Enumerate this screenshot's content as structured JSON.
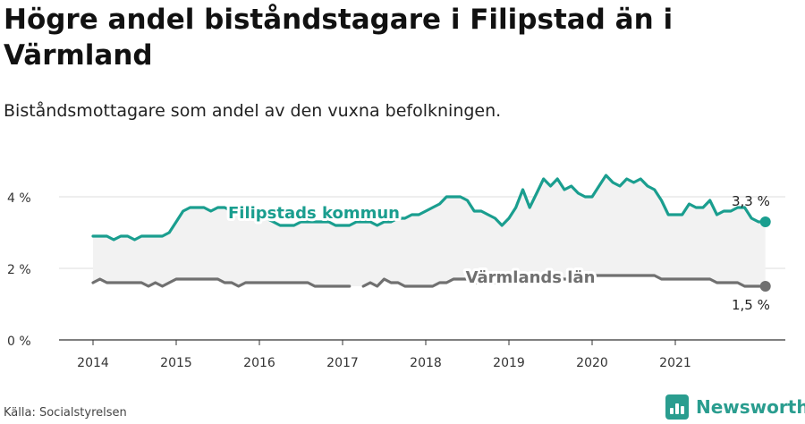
{
  "title": "Högre andel biståndstagare i Filipstad än i Värmland",
  "subtitle": "Biståndsmottagare som andel av den vuxna befolkningen.",
  "source": "Källa: Socialstyrelsen",
  "brand": "Newsworthy",
  "colors": {
    "filipstad": "#1a9e8f",
    "varmland": "#707070",
    "band": "#f2f2f2",
    "grid": "#dddddd",
    "brand": "#2a9d8f"
  },
  "chart_data": {
    "type": "line",
    "ylim": [
      0,
      5
    ],
    "y_ticks": [
      {
        "value": 0,
        "label": "0 %"
      },
      {
        "value": 2,
        "label": "2 %"
      },
      {
        "value": 4,
        "label": "4 %"
      }
    ],
    "x_ticks": [
      "2014",
      "2015",
      "2016",
      "2017",
      "2018",
      "2019",
      "2020",
      "2021"
    ],
    "x_start": 2014.0,
    "x_step": 0.08333,
    "grid": true,
    "series": [
      {
        "name": "Filipstads kommun",
        "end_label": "3,3 %",
        "values": [
          2.9,
          2.9,
          2.9,
          2.8,
          2.9,
          2.9,
          2.8,
          2.9,
          2.9,
          2.9,
          2.9,
          3.0,
          3.3,
          3.6,
          3.7,
          3.7,
          3.7,
          3.6,
          3.7,
          3.7,
          3.6,
          3.5,
          3.4,
          3.4,
          3.4,
          3.4,
          3.3,
          3.2,
          3.2,
          3.2,
          3.3,
          3.3,
          3.3,
          3.3,
          3.3,
          3.2,
          3.2,
          3.2,
          3.3,
          3.3,
          3.3,
          3.2,
          3.3,
          3.3,
          3.4,
          3.4,
          3.5,
          3.5,
          3.6,
          3.7,
          3.8,
          4.0,
          4.0,
          4.0,
          3.9,
          3.6,
          3.6,
          3.5,
          3.4,
          3.2,
          3.4,
          3.7,
          4.2,
          3.7,
          4.1,
          4.5,
          4.3,
          4.5,
          4.2,
          4.3,
          4.1,
          4.0,
          4.0,
          4.3,
          4.6,
          4.4,
          4.3,
          4.5,
          4.4,
          4.5,
          4.3,
          4.2,
          3.9,
          3.5,
          3.5,
          3.5,
          3.8,
          3.7,
          3.7,
          3.9,
          3.5,
          3.6,
          3.6,
          3.7,
          3.7,
          3.4,
          3.3,
          3.3
        ]
      },
      {
        "name": "Värmlands län",
        "end_label": "1,5 %",
        "values": [
          1.6,
          1.7,
          1.6,
          1.6,
          1.6,
          1.6,
          1.6,
          1.6,
          1.5,
          1.6,
          1.5,
          1.6,
          1.7,
          1.7,
          1.7,
          1.7,
          1.7,
          1.7,
          1.7,
          1.6,
          1.6,
          1.5,
          1.6,
          1.6,
          1.6,
          1.6,
          1.6,
          1.6,
          1.6,
          1.6,
          1.6,
          1.6,
          1.5,
          1.5,
          1.5,
          1.5,
          1.5,
          1.5,
          null,
          1.5,
          1.6,
          1.5,
          1.7,
          1.6,
          1.6,
          1.5,
          1.5,
          1.5,
          1.5,
          1.5,
          1.6,
          1.6,
          1.7,
          1.7,
          1.7,
          1.6,
          1.6,
          1.6,
          1.6,
          1.6,
          1.7,
          1.7,
          1.7,
          1.7,
          1.7,
          1.7,
          1.7,
          1.7,
          1.7,
          1.7,
          1.7,
          1.7,
          1.8,
          1.8,
          1.8,
          1.8,
          1.8,
          1.8,
          1.8,
          1.8,
          1.8,
          1.8,
          1.7,
          1.7,
          1.7,
          1.7,
          1.7,
          1.7,
          1.7,
          1.7,
          1.6,
          1.6,
          1.6,
          1.6,
          1.5,
          1.5,
          1.5,
          1.5
        ]
      }
    ]
  }
}
